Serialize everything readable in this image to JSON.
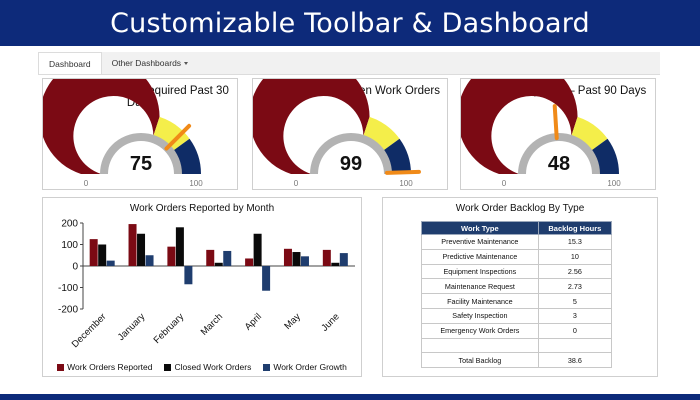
{
  "banner": {
    "title": "Customizable Toolbar & Dashboard"
  },
  "tabs": [
    {
      "label": "Dashboard"
    },
    {
      "label": "Other Dashboards"
    }
  ],
  "gauges": [
    {
      "title": "% Completed By Required Past 30 Days",
      "value": "75",
      "needle": 75,
      "min": "0",
      "max": "100"
    },
    {
      "title": "% Assets Not in Open Work Orders",
      "value": "99",
      "needle": 99,
      "min": "0",
      "max": "100"
    },
    {
      "title": "% PMs Completed – Past 90 Days",
      "value": "48",
      "needle": 48,
      "min": "0",
      "max": "100"
    }
  ],
  "colors": {
    "banner": "#0d2a7a",
    "red": "#7b0a14",
    "yellow": "#f4ee4a",
    "navy": "#0f2c66",
    "needle": "#f08a18",
    "series_reported": "#7b0a14",
    "series_closed": "#0a0a0a",
    "series_growth": "#1f3d6e"
  },
  "chart_data": {
    "type": "bar",
    "title": "Work Orders Reported by Month",
    "categories": [
      "December",
      "January",
      "February",
      "March",
      "April",
      "May",
      "June"
    ],
    "series": [
      {
        "name": "Work Orders Reported",
        "values": [
          125,
          195,
          90,
          75,
          35,
          80,
          75
        ]
      },
      {
        "name": "Closed Work Orders",
        "values": [
          100,
          150,
          180,
          15,
          150,
          65,
          15
        ]
      },
      {
        "name": "Work Order Growth",
        "values": [
          25,
          50,
          -85,
          70,
          -115,
          45,
          60
        ]
      }
    ],
    "yticks": [
      "200",
      "100",
      "0",
      "-100",
      "-200"
    ],
    "ylim": [
      -200,
      200
    ]
  },
  "backlog": {
    "title": "Work Order Backlog By Type",
    "headers": [
      "Work Type",
      "Backlog Hours"
    ],
    "rows": [
      {
        "type": "Preventive Maintenance",
        "hours": "15.3"
      },
      {
        "type": "Predictive Maintenance",
        "hours": "10"
      },
      {
        "type": "Equipment Inspections",
        "hours": "2.56"
      },
      {
        "type": "Maintenance Request",
        "hours": "2.73"
      },
      {
        "type": "Facility Maintenance",
        "hours": "5"
      },
      {
        "type": "Safety Inspection",
        "hours": "3"
      },
      {
        "type": "Emergency Work Orders",
        "hours": "0"
      },
      {
        "type": "",
        "hours": ""
      }
    ],
    "total_label": "Total Backlog",
    "total_value": "38.6"
  }
}
